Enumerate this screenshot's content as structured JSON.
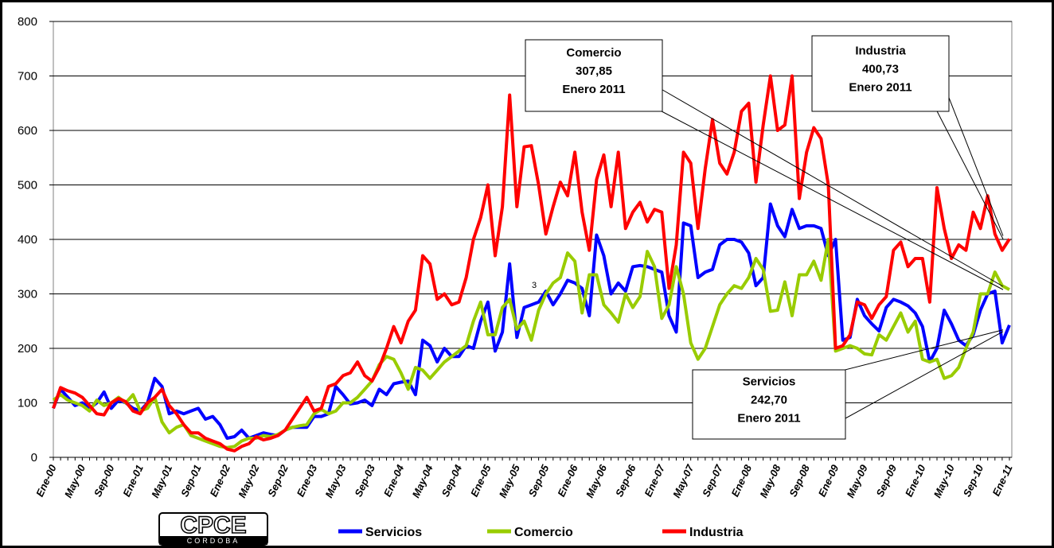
{
  "chart_data": {
    "type": "line",
    "categories": [
      "Ene-00",
      null,
      null,
      null,
      "May-00",
      null,
      null,
      null,
      "Sep-00",
      null,
      null,
      null,
      "Ene-01",
      null,
      null,
      null,
      "May-01",
      null,
      null,
      null,
      "Sep-01",
      null,
      null,
      null,
      "Ene-02",
      null,
      null,
      null,
      "May-02",
      null,
      null,
      null,
      "Sep-02",
      null,
      null,
      null,
      "Ene-03",
      null,
      null,
      null,
      "May-03",
      null,
      null,
      null,
      "Sep-03",
      null,
      null,
      null,
      "Ene-04",
      null,
      null,
      null,
      "May-04",
      null,
      null,
      null,
      "Sep-04",
      null,
      null,
      null,
      "Ene-05",
      null,
      null,
      null,
      "May-05",
      null,
      null,
      null,
      "Sep-05",
      null,
      null,
      null,
      "Ene-06",
      null,
      null,
      null,
      "May-06",
      null,
      null,
      null,
      "Sep-06",
      null,
      null,
      null,
      "Ene-07",
      null,
      null,
      null,
      "May-07",
      null,
      null,
      null,
      "Sep-07",
      null,
      null,
      null,
      "Ene-08",
      null,
      null,
      null,
      "May-08",
      null,
      null,
      null,
      "Sep-08",
      null,
      null,
      null,
      "Ene-09",
      null,
      null,
      null,
      "May-09",
      null,
      null,
      null,
      "Sep-09",
      null,
      null,
      null,
      "Ene-10",
      null,
      null,
      null,
      "May-10",
      null,
      null,
      null,
      "Sep-10",
      null,
      null,
      null,
      "Ene-11"
    ],
    "series": [
      {
        "name": "Servicios",
        "color": "#0000ff",
        "values": [
          90,
          125,
          110,
          95,
          100,
          90,
          100,
          120,
          90,
          105,
          100,
          90,
          85,
          100,
          145,
          130,
          80,
          85,
          80,
          85,
          90,
          70,
          75,
          60,
          35,
          38,
          50,
          35,
          40,
          45,
          42,
          40,
          50,
          55,
          55,
          55,
          75,
          75,
          80,
          130,
          115,
          98,
          100,
          105,
          95,
          125,
          115,
          135,
          138,
          140,
          115,
          215,
          205,
          175,
          200,
          185,
          185,
          205,
          200,
          250,
          285,
          195,
          230,
          355,
          220,
          275,
          280,
          285,
          305,
          280,
          300,
          325,
          320,
          310,
          260,
          408,
          370,
          300,
          320,
          305,
          350,
          352,
          350,
          345,
          340,
          260,
          230,
          430,
          425,
          330,
          340,
          345,
          390,
          400,
          400,
          395,
          375,
          315,
          330,
          465,
          425,
          405,
          455,
          420,
          425,
          425,
          420,
          370,
          400,
          215,
          220,
          290,
          260,
          245,
          232,
          275,
          290,
          285,
          278,
          265,
          240,
          175,
          200,
          270,
          245,
          215,
          205,
          225,
          270,
          300,
          305,
          210,
          242.7
        ]
      },
      {
        "name": "Comercio",
        "color": "#99cc00",
        "values": [
          105,
          115,
          105,
          100,
          95,
          85,
          105,
          95,
          100,
          110,
          100,
          115,
          85,
          90,
          110,
          65,
          45,
          55,
          60,
          40,
          35,
          30,
          25,
          20,
          18,
          20,
          30,
          35,
          35,
          40,
          38,
          42,
          50,
          55,
          58,
          60,
          80,
          88,
          80,
          85,
          100,
          100,
          110,
          125,
          140,
          170,
          185,
          180,
          155,
          125,
          165,
          160,
          145,
          160,
          175,
          185,
          195,
          205,
          250,
          285,
          225,
          225,
          275,
          290,
          235,
          250,
          215,
          270,
          300,
          320,
          330,
          375,
          360,
          265,
          335,
          335,
          280,
          265,
          248,
          300,
          275,
          295,
          378,
          350,
          255,
          280,
          350,
          300,
          210,
          180,
          200,
          240,
          280,
          300,
          315,
          310,
          330,
          365,
          345,
          268,
          270,
          322,
          260,
          335,
          335,
          360,
          325,
          400,
          195,
          200,
          205,
          200,
          190,
          188,
          225,
          215,
          240,
          265,
          230,
          250,
          180,
          175,
          180,
          145,
          150,
          165,
          200,
          230,
          300,
          300,
          340,
          315,
          307.85
        ]
      },
      {
        "name": "Industria",
        "color": "#ff0000",
        "values": [
          90,
          128,
          122,
          118,
          110,
          95,
          80,
          78,
          100,
          108,
          102,
          85,
          80,
          100,
          110,
          125,
          95,
          80,
          60,
          45,
          45,
          35,
          30,
          25,
          15,
          12,
          20,
          25,
          38,
          32,
          35,
          40,
          50,
          70,
          90,
          110,
          85,
          90,
          130,
          135,
          150,
          155,
          175,
          150,
          140,
          165,
          200,
          240,
          210,
          250,
          270,
          370,
          355,
          290,
          300,
          280,
          285,
          330,
          400,
          440,
          500,
          370,
          460,
          665,
          460,
          570,
          572,
          500,
          410,
          460,
          505,
          480,
          560,
          450,
          380,
          510,
          555,
          460,
          560,
          420,
          450,
          468,
          432,
          455,
          450,
          310,
          390,
          560,
          540,
          420,
          530,
          620,
          540,
          520,
          560,
          635,
          650,
          505,
          610,
          700,
          600,
          610,
          700,
          475,
          560,
          605,
          585,
          500,
          200,
          205,
          225,
          285,
          280,
          255,
          280,
          295,
          380,
          395,
          350,
          365,
          365,
          285,
          495,
          420,
          365,
          390,
          380,
          450,
          420,
          480,
          410,
          380,
          400.73
        ]
      }
    ],
    "ylim": [
      0,
      800
    ],
    "yticks": [
      0,
      100,
      200,
      300,
      400,
      500,
      600,
      700,
      800
    ],
    "grid": true,
    "annotations": [
      {
        "series": 1,
        "lines": [
          "Comercio",
          "307,85",
          "Enero 2011"
        ]
      },
      {
        "series": 2,
        "lines": [
          "Industria",
          "400,73",
          "Enero 2011"
        ]
      },
      {
        "series": 0,
        "lines": [
          "Servicios",
          "242,70",
          "Enero 2011"
        ]
      }
    ],
    "stray_label": "3",
    "logo": {
      "main": "CPCE",
      "sub": "CORDOBA"
    }
  }
}
